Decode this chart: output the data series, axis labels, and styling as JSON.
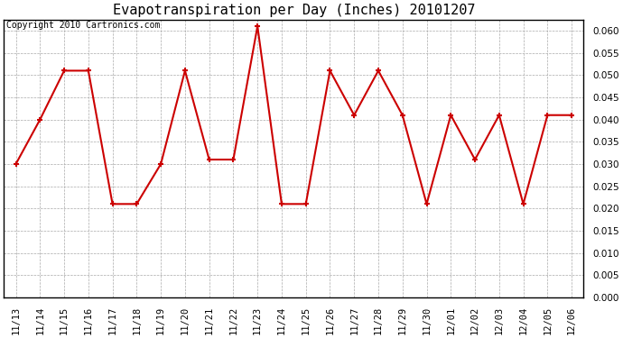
{
  "title": "Evapotranspiration per Day (Inches) 20101207",
  "copyright": "Copyright 2010 Cartronics.com",
  "labels": [
    "11/13",
    "11/14",
    "11/15",
    "11/16",
    "11/17",
    "11/18",
    "11/19",
    "11/20",
    "11/21",
    "11/22",
    "11/23",
    "11/24",
    "11/25",
    "11/26",
    "11/27",
    "11/28",
    "11/29",
    "11/30",
    "12/01",
    "12/02",
    "12/03",
    "12/04",
    "12/05",
    "12/06"
  ],
  "values": [
    0.03,
    0.04,
    0.051,
    0.051,
    0.021,
    0.021,
    0.03,
    0.051,
    0.031,
    0.031,
    0.061,
    0.021,
    0.021,
    0.051,
    0.041,
    0.051,
    0.041,
    0.021,
    0.041,
    0.031,
    0.041,
    0.021,
    0.041,
    0.041
  ],
  "line_color": "#cc0000",
  "marker": "+",
  "marker_size": 5,
  "marker_edge_width": 1.5,
  "line_width": 1.5,
  "ylim": [
    0.0,
    0.0625
  ],
  "yticks": [
    0.0,
    0.005,
    0.01,
    0.015,
    0.02,
    0.025,
    0.03,
    0.035,
    0.04,
    0.045,
    0.05,
    0.055,
    0.06
  ],
  "background_color": "#ffffff",
  "plot_background": "#ffffff",
  "grid_color": "#aaaaaa",
  "title_fontsize": 11,
  "copyright_fontsize": 7,
  "tick_fontsize": 7.5
}
